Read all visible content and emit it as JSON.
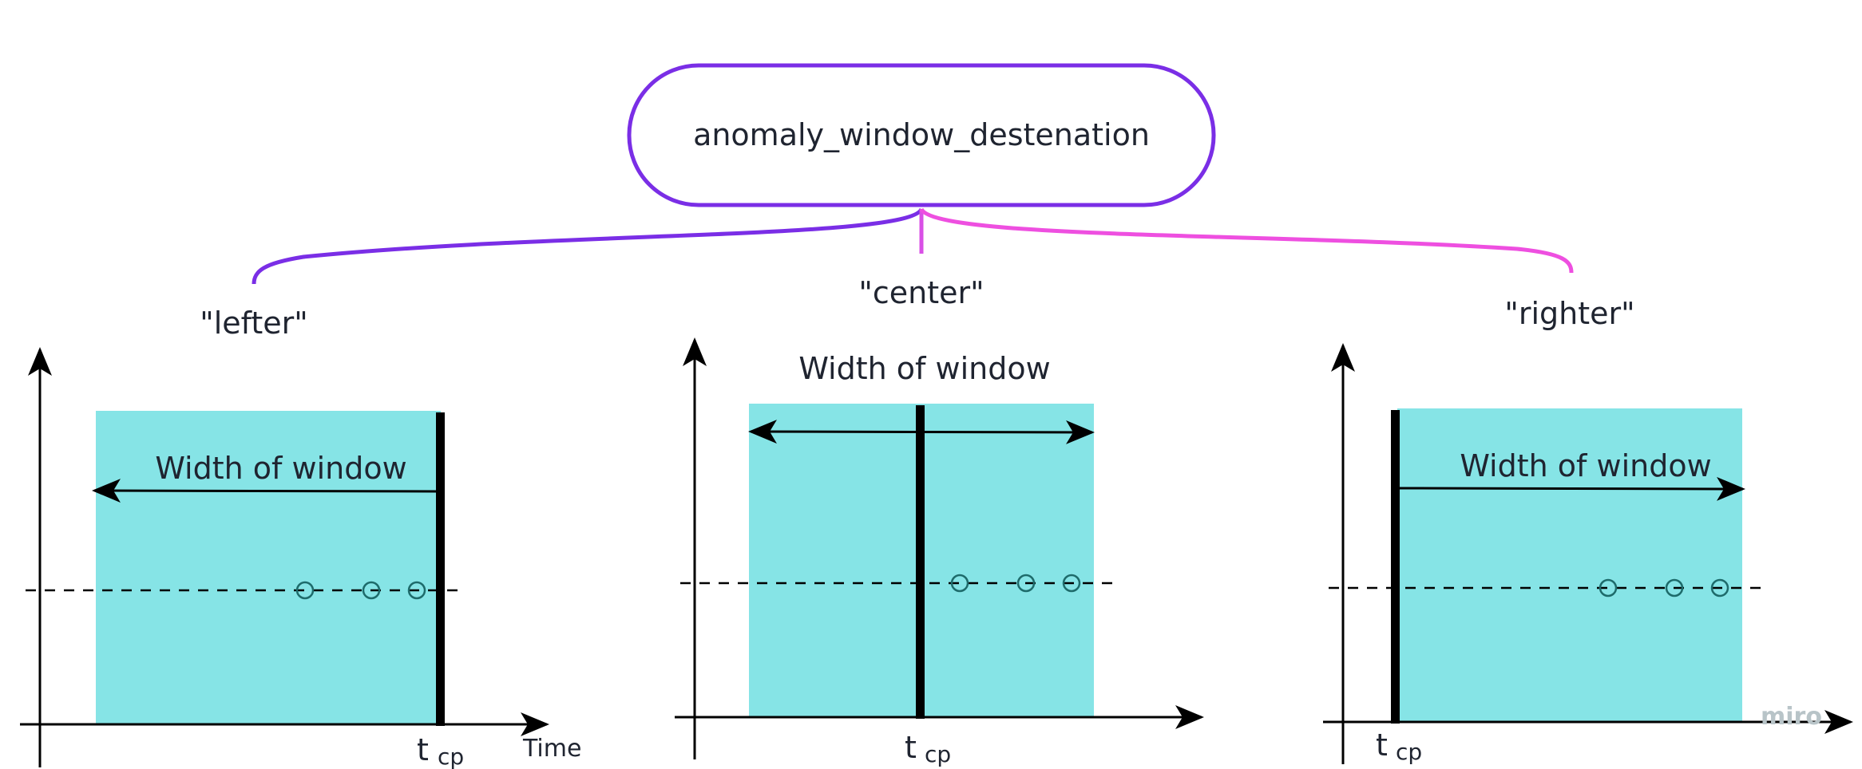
{
  "root_node": {
    "label": "anomaly_window_destenation"
  },
  "options": [
    {
      "label": "\"lefter\""
    },
    {
      "label": "\"center\""
    },
    {
      "label": "\"righter\""
    }
  ],
  "panels": [
    {
      "window_label": "Width of window",
      "tcp_t": "t",
      "tcp_sub": "cp",
      "x_axis_label": "Time"
    },
    {
      "window_label": "Width of window",
      "tcp_t": "t",
      "tcp_sub": "cp"
    },
    {
      "window_label": "Width of window",
      "tcp_t": "t",
      "tcp_sub": "cp"
    }
  ],
  "watermark": "miro",
  "colors": {
    "window_fill": "#86E4E6",
    "connector_left": "#7A2EE6",
    "connector_right": "#EE4FE0",
    "node_border": "#7A2EE6",
    "change_point": "#000000",
    "marker": "#1E6B6B"
  }
}
